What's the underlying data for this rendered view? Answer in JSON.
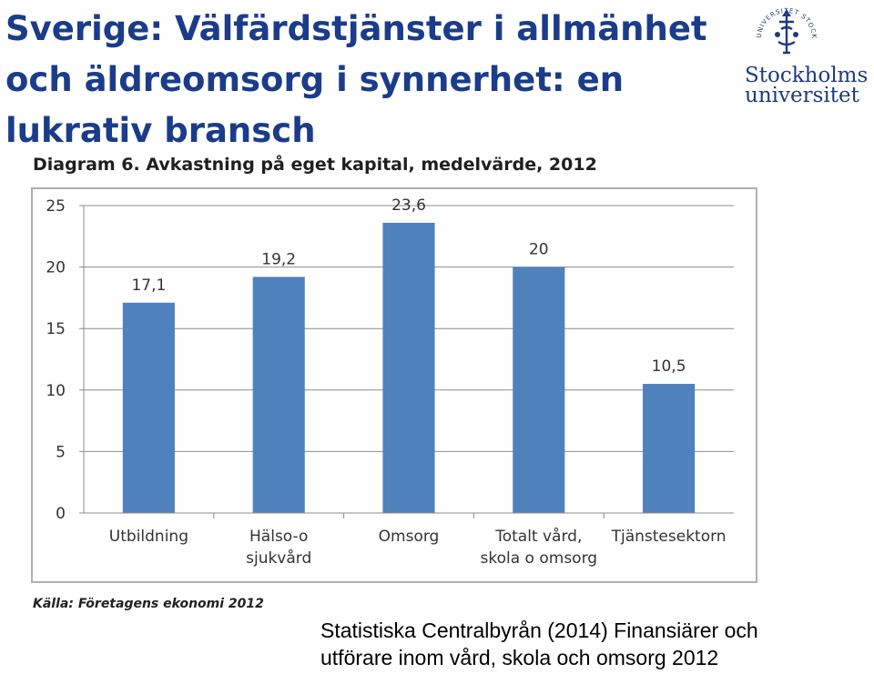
{
  "slide": {
    "title_lines": [
      "Sverige: Välfärdstjänster i allmänhet",
      "och äldreomsorg i synnerhet: en",
      "lukrativ bransch"
    ]
  },
  "logo": {
    "line1": "Stockholms",
    "line2": "universitet",
    "seal_text": "UNIVERSITET STOCKHOLMS",
    "color": "#1e3b7e"
  },
  "chart_title": "Diagram 6. Avkastning på eget kapital, medelvärde, 2012",
  "source_note": "Källa: Företagens ekonomi 2012",
  "citation_lines": [
    "Statistiska Centralbyrån (2014) Finansiärer och",
    "utförare inom vård, skola och omsorg 2012"
  ],
  "chart_data": {
    "type": "bar",
    "title": "Diagram 6. Avkastning på eget kapital, medelvärde, 2012",
    "categories": [
      [
        "Utbildning"
      ],
      [
        "Hälso-o",
        "sjukvård"
      ],
      [
        "Omsorg"
      ],
      [
        "Totalt vård,",
        "skola o omsorg"
      ],
      [
        "Tjänstesektorn"
      ]
    ],
    "values": [
      17.1,
      19.2,
      23.6,
      20,
      10.5
    ],
    "data_labels": [
      "17,1",
      "19,2",
      "23,6",
      "20",
      "10,5"
    ],
    "yticks": [
      0,
      5,
      10,
      15,
      20,
      25
    ],
    "ylim": [
      0,
      25
    ],
    "grid": true,
    "bar_color": "#4f81bd",
    "xlabel": "",
    "ylabel": ""
  }
}
